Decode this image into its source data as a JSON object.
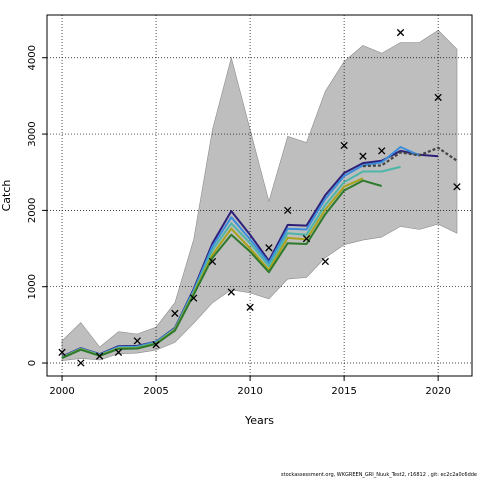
{
  "chart_data": {
    "type": "line",
    "xlabel": "Years",
    "ylabel": "Catch",
    "xlim": [
      1999.2,
      2021.8
    ],
    "ylim": [
      -170,
      4560
    ],
    "xticks": [
      2000,
      2005,
      2010,
      2015,
      2020
    ],
    "yticks": [
      0,
      1000,
      2000,
      3000,
      4000
    ],
    "grid": true,
    "band": {
      "x": [
        2000,
        2001,
        2002,
        2003,
        2004,
        2005,
        2006,
        2007,
        2008,
        2009,
        2010,
        2011,
        2012,
        2013,
        2014,
        2015,
        2016,
        2017,
        2018,
        2019,
        2020,
        2021
      ],
      "lower": [
        30,
        60,
        40,
        120,
        130,
        170,
        270,
        520,
        790,
        960,
        920,
        840,
        1100,
        1120,
        1380,
        1550,
        1610,
        1650,
        1790,
        1750,
        1820,
        1700
      ],
      "upper": [
        290,
        530,
        210,
        410,
        380,
        470,
        790,
        1620,
        3060,
        4000,
        3060,
        2120,
        2970,
        2890,
        3560,
        3950,
        4160,
        4060,
        4200,
        4200,
        4360,
        4110
      ]
    },
    "series": [
      {
        "color": "#2e1f7a",
        "width": 2,
        "dash": "",
        "x": [
          2000,
          2001,
          2002,
          2003,
          2004,
          2005,
          2006,
          2007,
          2008,
          2009,
          2010,
          2011,
          2012,
          2013,
          2014,
          2015,
          2016,
          2017,
          2018,
          2019,
          2020
        ],
        "values": [
          85,
          195,
          115,
          220,
          225,
          280,
          460,
          970,
          1570,
          1990,
          1680,
          1340,
          1810,
          1800,
          2200,
          2490,
          2620,
          2650,
          2780,
          2730,
          2710
        ]
      },
      {
        "color": "#3a8edc",
        "width": 2,
        "dash": "",
        "x": [
          2000,
          2001,
          2002,
          2003,
          2004,
          2005,
          2006,
          2007,
          2008,
          2009,
          2010,
          2011,
          2012,
          2013,
          2014,
          2015,
          2016,
          2017,
          2018,
          2019
        ],
        "values": [
          80,
          190,
          110,
          210,
          215,
          275,
          450,
          950,
          1530,
          1910,
          1620,
          1310,
          1760,
          1750,
          2150,
          2450,
          2590,
          2630,
          2830,
          2720
        ]
      },
      {
        "color": "#4db5a8",
        "width": 2,
        "dash": "",
        "x": [
          2000,
          2001,
          2002,
          2003,
          2004,
          2005,
          2006,
          2007,
          2008,
          2009,
          2010,
          2011,
          2012,
          2013,
          2014,
          2015,
          2016,
          2017,
          2018
        ],
        "values": [
          75,
          185,
          105,
          200,
          205,
          265,
          445,
          930,
          1480,
          1830,
          1570,
          1270,
          1700,
          1680,
          2070,
          2370,
          2510,
          2510,
          2570
        ]
      },
      {
        "color": "#a9a21c",
        "width": 2,
        "dash": "",
        "x": [
          2000,
          2001,
          2002,
          2003,
          2004,
          2005,
          2006,
          2007,
          2008,
          2009,
          2010,
          2011,
          2012,
          2013,
          2014,
          2015,
          2016
        ],
        "values": [
          70,
          180,
          100,
          190,
          195,
          255,
          435,
          910,
          1420,
          1760,
          1500,
          1220,
          1640,
          1620,
          2010,
          2310,
          2420
        ]
      },
      {
        "color": "#2d7a2d",
        "width": 2,
        "dash": "",
        "x": [
          2000,
          2001,
          2002,
          2003,
          2004,
          2005,
          2006,
          2007,
          2008,
          2009,
          2010,
          2011,
          2012,
          2013,
          2014,
          2015,
          2016,
          2017
        ],
        "values": [
          65,
          175,
          95,
          185,
          190,
          250,
          425,
          895,
          1380,
          1680,
          1460,
          1190,
          1570,
          1560,
          1950,
          2260,
          2390,
          2320
        ]
      },
      {
        "color": "#444444",
        "width": 2.2,
        "dash": "3,2",
        "x": [
          2016,
          2017,
          2018,
          2019,
          2020,
          2021
        ],
        "values": [
          2580,
          2590,
          2760,
          2720,
          2820,
          2650
        ]
      }
    ],
    "points": {
      "x": [
        2000,
        2001,
        2002,
        2003,
        2004,
        2005,
        2006,
        2007,
        2008,
        2009,
        2010,
        2011,
        2012,
        2013,
        2014,
        2015,
        2016,
        2017,
        2018,
        2020,
        2021
      ],
      "values": [
        140,
        0,
        90,
        140,
        290,
        240,
        650,
        850,
        1330,
        930,
        730,
        1510,
        2000,
        1630,
        1330,
        2850,
        2710,
        2780,
        4330,
        3480,
        2310
      ]
    }
  },
  "footer": {
    "text": "stockassessment.org, WKGREEN_GRI_Nuuk_Test2, r16812 , git: ec2c2a0c6dde"
  }
}
